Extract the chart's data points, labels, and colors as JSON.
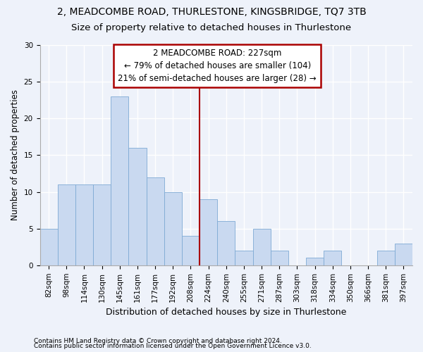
{
  "title1": "2, MEADCOMBE ROAD, THURLESTONE, KINGSBRIDGE, TQ7 3TB",
  "title2": "Size of property relative to detached houses in Thurlestone",
  "xlabel": "Distribution of detached houses by size in Thurlestone",
  "ylabel": "Number of detached properties",
  "footnote1": "Contains HM Land Registry data © Crown copyright and database right 2024.",
  "footnote2": "Contains public sector information licensed under the Open Government Licence v3.0.",
  "categories": [
    "82sqm",
    "98sqm",
    "114sqm",
    "130sqm",
    "145sqm",
    "161sqm",
    "177sqm",
    "192sqm",
    "208sqm",
    "224sqm",
    "240sqm",
    "255sqm",
    "271sqm",
    "287sqm",
    "303sqm",
    "318sqm",
    "334sqm",
    "350sqm",
    "366sqm",
    "381sqm",
    "397sqm"
  ],
  "values": [
    5,
    11,
    11,
    11,
    23,
    16,
    12,
    10,
    4,
    9,
    6,
    2,
    5,
    2,
    0,
    1,
    2,
    0,
    0,
    2,
    3
  ],
  "bar_color": "#c9d9f0",
  "bar_edge_color": "#7eaad4",
  "annotation_line1": "2 MEADCOMBE ROAD: 227sqm",
  "annotation_line2": "← 79% of detached houses are smaller (104)",
  "annotation_line3": "21% of semi-detached houses are larger (28) →",
  "vline_index": 8.5,
  "annotation_box_color": "#ffffff",
  "annotation_box_edge_color": "#aa0000",
  "vline_color": "#aa0000",
  "ylim": [
    0,
    30
  ],
  "yticks": [
    0,
    5,
    10,
    15,
    20,
    25,
    30
  ],
  "background_color": "#eef2fa",
  "grid_color": "#ffffff",
  "title1_fontsize": 10,
  "title2_fontsize": 9.5,
  "xlabel_fontsize": 9,
  "ylabel_fontsize": 8.5,
  "tick_fontsize": 7.5,
  "annotation_fontsize": 8.5,
  "footnote_fontsize": 6.5
}
